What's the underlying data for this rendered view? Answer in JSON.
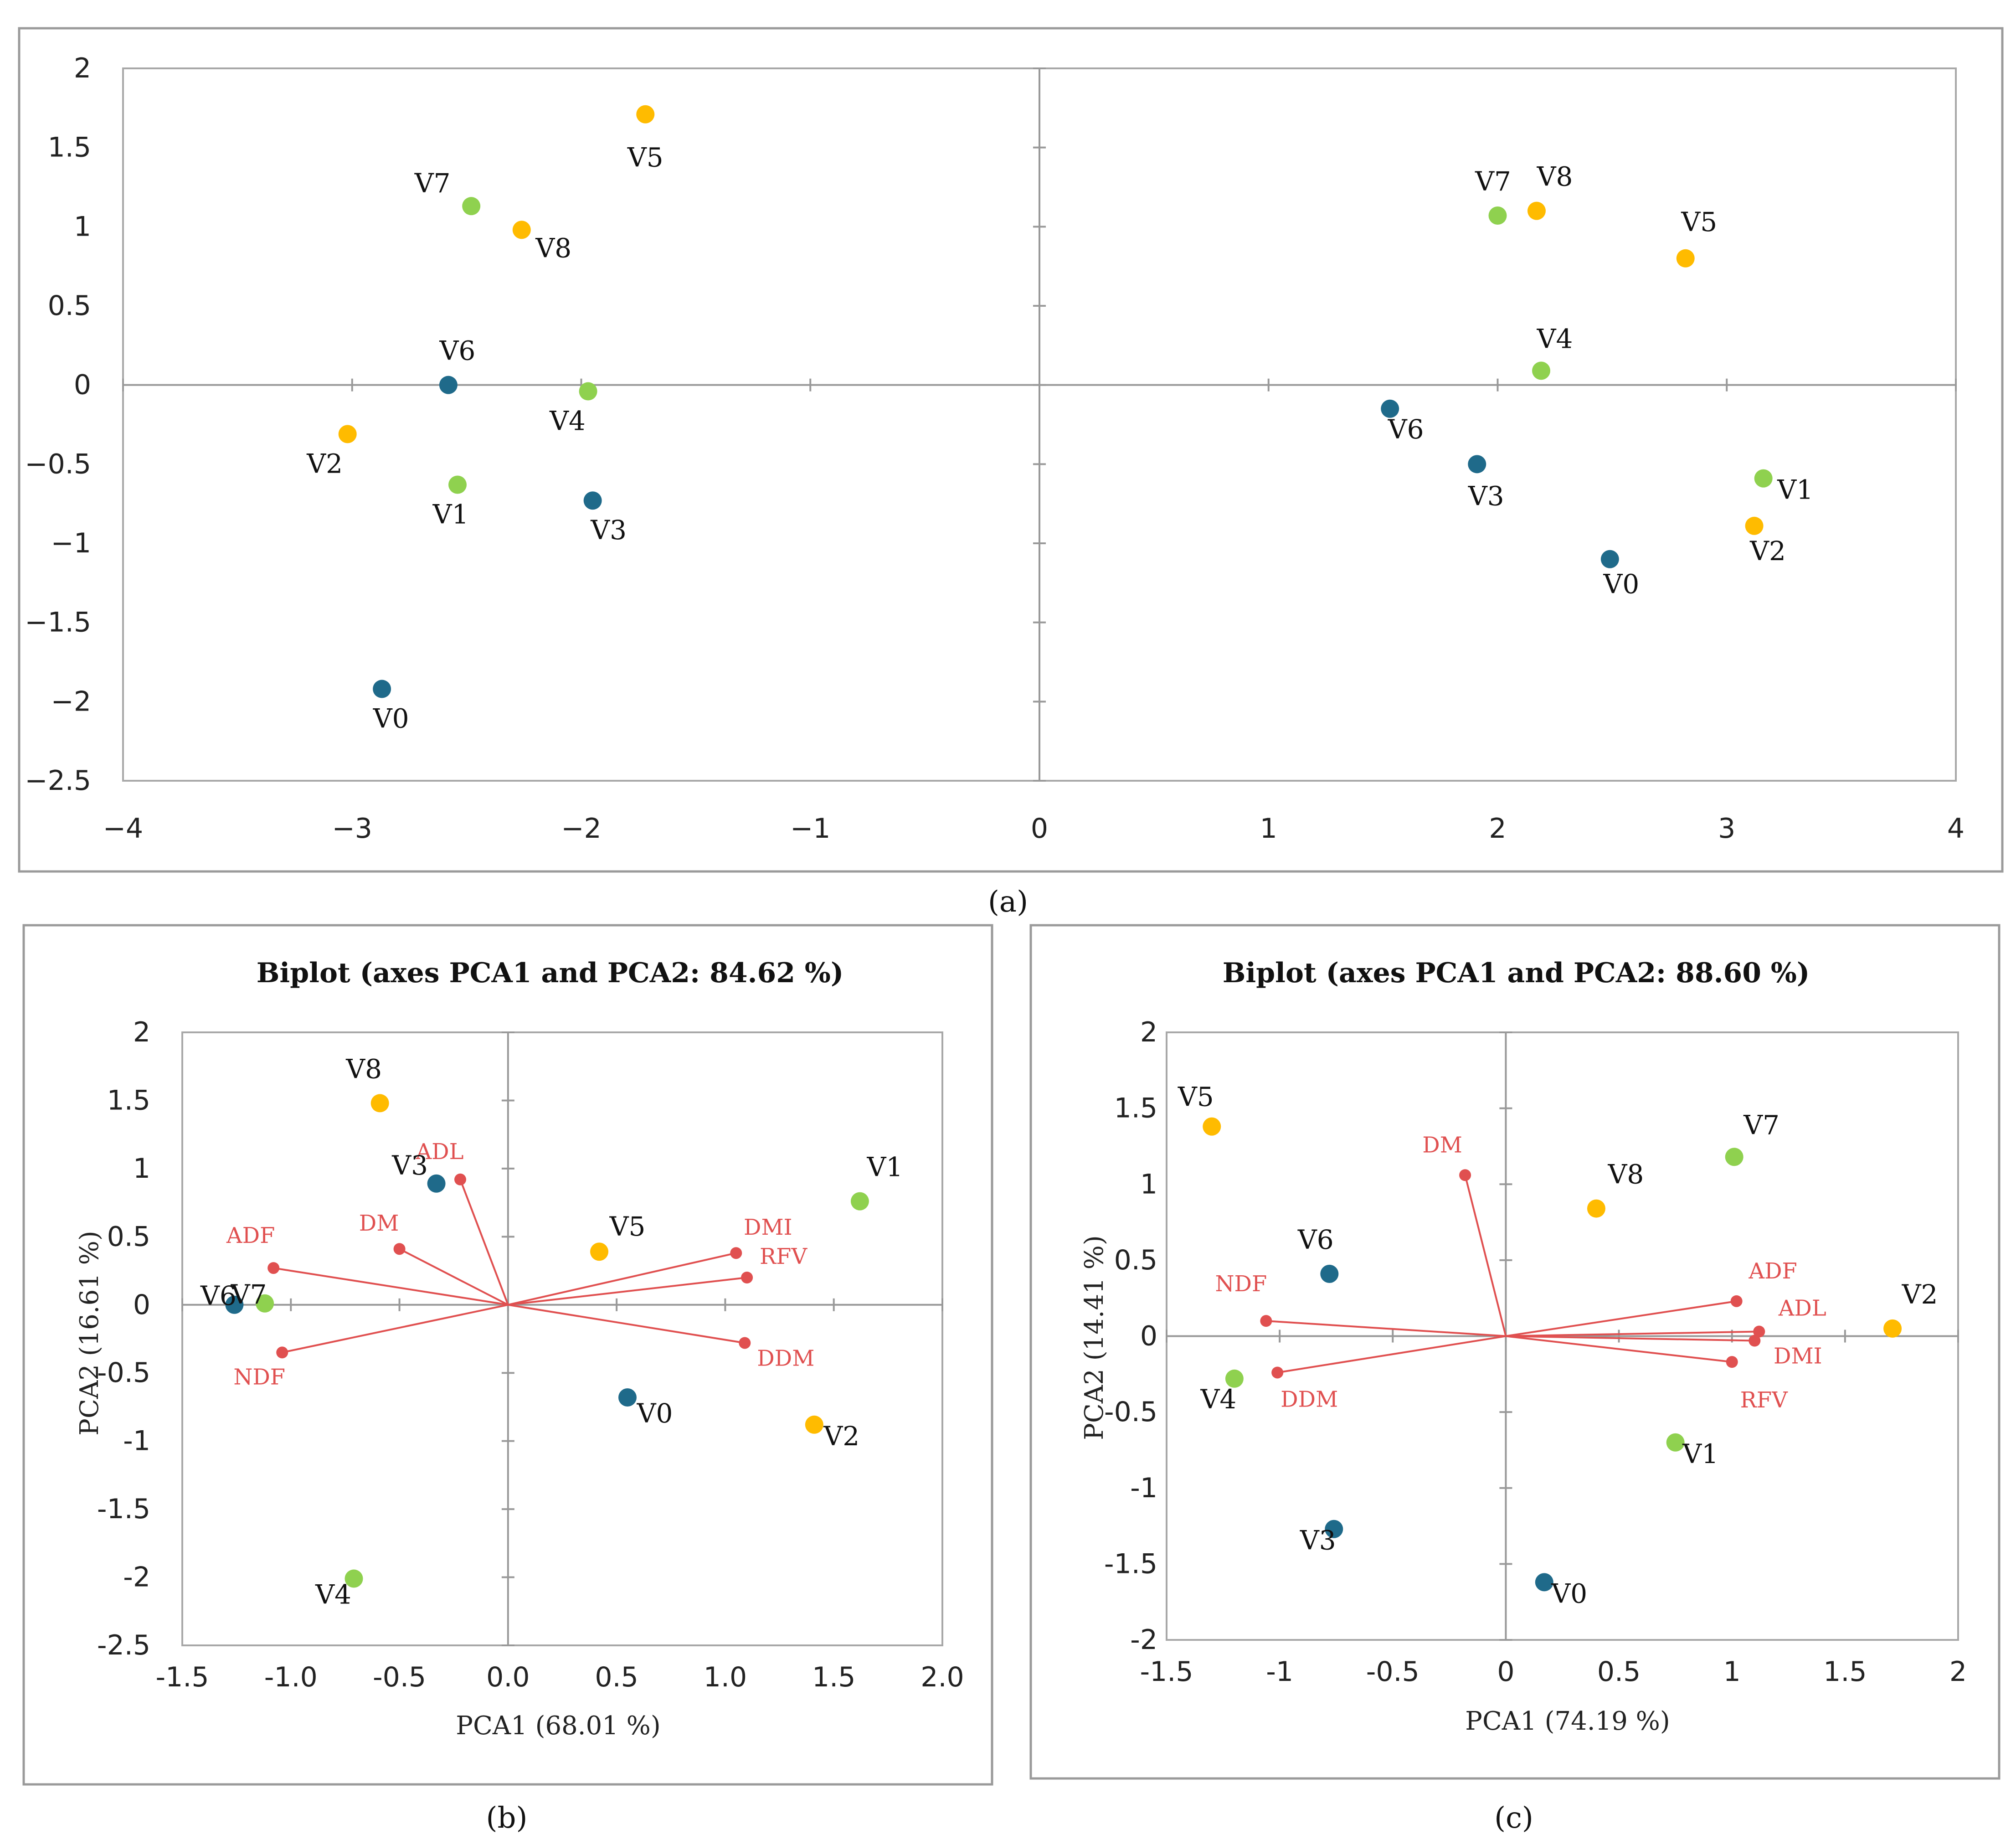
{
  "colors": {
    "blue": "#1f6a8a",
    "green": "#8fd14f",
    "orange": "#ffbb00",
    "red": "#e05050",
    "axis": "#999999",
    "frame": "#9a9a9a"
  },
  "panels": {
    "a": "(a)",
    "b": "(b)",
    "c": "(c)"
  },
  "chart_data": [
    {
      "id": "a",
      "type": "scatter",
      "title": "",
      "xlabel": "",
      "ylabel": "",
      "xlim": [
        -4,
        4
      ],
      "ylim": [
        -2.5,
        2
      ],
      "xticks": [
        -4,
        -3,
        -2,
        -1,
        0,
        1,
        2,
        3,
        4
      ],
      "xtick_labels": [
        "−4",
        "−3",
        "−2",
        "−1",
        "0",
        "1",
        "2",
        "3",
        "4"
      ],
      "yticks": [
        2,
        1.5,
        1,
        0.5,
        0,
        -0.5,
        -1,
        -1.5,
        -2,
        -2.5
      ],
      "ytick_labels": [
        "2",
        "1.5",
        "1",
        "0.5",
        "0",
        "−0.5",
        "−1",
        "−1.5",
        "−2",
        "−2.5"
      ],
      "points": [
        {
          "label": "V5",
          "x": -1.72,
          "y": 1.71,
          "color": "orange"
        },
        {
          "label": "V7",
          "x": -2.48,
          "y": 1.13,
          "color": "green"
        },
        {
          "label": "V8",
          "x": -2.26,
          "y": 0.98,
          "color": "orange"
        },
        {
          "label": "V6",
          "x": -2.58,
          "y": 0.0,
          "color": "blue"
        },
        {
          "label": "V4",
          "x": -1.97,
          "y": -0.04,
          "color": "green"
        },
        {
          "label": "V2",
          "x": -3.02,
          "y": -0.31,
          "color": "orange"
        },
        {
          "label": "V1",
          "x": -2.54,
          "y": -0.63,
          "color": "green"
        },
        {
          "label": "V3",
          "x": -1.95,
          "y": -0.73,
          "color": "blue"
        },
        {
          "label": "V0",
          "x": -2.87,
          "y": -1.92,
          "color": "blue"
        },
        {
          "label": "V7",
          "x": 2.0,
          "y": 1.07,
          "color": "green"
        },
        {
          "label": "V8",
          "x": 2.17,
          "y": 1.1,
          "color": "orange"
        },
        {
          "label": "V5",
          "x": 2.82,
          "y": 0.8,
          "color": "orange"
        },
        {
          "label": "V4",
          "x": 2.19,
          "y": 0.09,
          "color": "green"
        },
        {
          "label": "V6",
          "x": 1.53,
          "y": -0.15,
          "color": "blue"
        },
        {
          "label": "V3",
          "x": 1.91,
          "y": -0.5,
          "color": "blue"
        },
        {
          "label": "V1",
          "x": 3.16,
          "y": -0.59,
          "color": "green"
        },
        {
          "label": "V2",
          "x": 3.12,
          "y": -0.89,
          "color": "orange"
        },
        {
          "label": "V0",
          "x": 2.49,
          "y": -1.1,
          "color": "blue"
        }
      ]
    },
    {
      "id": "b",
      "type": "scatter",
      "title": "Biplot (axes PCA1 and PCA2: 84.62 %)",
      "xlabel": "PCA1 (68.01 %)",
      "ylabel": "PCA2 (16.61 %)",
      "xlim": [
        -1.5,
        2.0
      ],
      "ylim": [
        -2.5,
        2
      ],
      "xticks": [
        -1.5,
        -1.0,
        -0.5,
        0.0,
        0.5,
        1.0,
        1.5,
        2.0
      ],
      "xtick_labels": [
        "-1.5",
        "-1.0",
        "-0.5",
        "0.0",
        "0.5",
        "1.0",
        "1.5",
        "2.0"
      ],
      "yticks": [
        2,
        1.5,
        1,
        0.5,
        0,
        -0.5,
        -1,
        -1.5,
        -2,
        -2.5
      ],
      "ytick_labels": [
        "2",
        "1.5",
        "1",
        "0.5",
        "0",
        "-0.5",
        "-1",
        "-1.5",
        "-2",
        "-2.5"
      ],
      "points": [
        {
          "label": "V8",
          "x": -0.59,
          "y": 1.48,
          "color": "orange"
        },
        {
          "label": "V3",
          "x": -0.33,
          "y": 0.89,
          "color": "blue"
        },
        {
          "label": "V1",
          "x": 1.62,
          "y": 0.76,
          "color": "green"
        },
        {
          "label": "V5",
          "x": 0.42,
          "y": 0.39,
          "color": "orange"
        },
        {
          "label": "V6",
          "x": -1.26,
          "y": 0.0,
          "color": "blue"
        },
        {
          "label": "V7",
          "x": -1.12,
          "y": 0.01,
          "color": "green"
        },
        {
          "label": "V0",
          "x": 0.55,
          "y": -0.68,
          "color": "blue"
        },
        {
          "label": "V2",
          "x": 1.41,
          "y": -0.88,
          "color": "orange"
        },
        {
          "label": "V4",
          "x": -0.71,
          "y": -2.01,
          "color": "green"
        }
      ],
      "vectors": [
        {
          "label": "ADL",
          "x": -0.22,
          "y": 0.92
        },
        {
          "label": "DM",
          "x": -0.5,
          "y": 0.41
        },
        {
          "label": "ADF",
          "x": -1.08,
          "y": 0.27
        },
        {
          "label": "NDF",
          "x": -1.04,
          "y": -0.35
        },
        {
          "label": "DMI",
          "x": 1.05,
          "y": 0.38
        },
        {
          "label": "RFV",
          "x": 1.1,
          "y": 0.2
        },
        {
          "label": "DDM",
          "x": 1.09,
          "y": -0.28
        }
      ]
    },
    {
      "id": "c",
      "type": "scatter",
      "title": "Biplot (axes PCA1 and PCA2: 88.60 %)",
      "xlabel": "PCA1 (74.19 %)",
      "ylabel": "PCA2 (14.41 %)",
      "xlim": [
        -1.5,
        2
      ],
      "ylim": [
        -2,
        2
      ],
      "xticks": [
        -1.5,
        -1,
        -0.5,
        0,
        0.5,
        1,
        1.5,
        2
      ],
      "xtick_labels": [
        "-1.5",
        "-1",
        "-0.5",
        "0",
        "0.5",
        "1",
        "1.5",
        "2"
      ],
      "yticks": [
        2,
        1.5,
        1,
        0.5,
        0,
        -0.5,
        -1,
        -1.5,
        -2
      ],
      "ytick_labels": [
        "2",
        "1.5",
        "1",
        "0.5",
        "0",
        "-0.5",
        "-1",
        "-1.5",
        "-2"
      ],
      "points": [
        {
          "label": "V5",
          "x": -1.3,
          "y": 1.38,
          "color": "orange"
        },
        {
          "label": "V7",
          "x": 1.01,
          "y": 1.18,
          "color": "green"
        },
        {
          "label": "V8",
          "x": 0.4,
          "y": 0.84,
          "color": "orange"
        },
        {
          "label": "V6",
          "x": -0.78,
          "y": 0.41,
          "color": "blue"
        },
        {
          "label": "V2",
          "x": 1.71,
          "y": 0.05,
          "color": "orange"
        },
        {
          "label": "V4",
          "x": -1.2,
          "y": -0.28,
          "color": "green"
        },
        {
          "label": "V1",
          "x": 0.75,
          "y": -0.7,
          "color": "green"
        },
        {
          "label": "V3",
          "x": -0.76,
          "y": -1.27,
          "color": "blue"
        },
        {
          "label": "V0",
          "x": 0.17,
          "y": -1.62,
          "color": "blue"
        }
      ],
      "vectors": [
        {
          "label": "DM",
          "x": -0.18,
          "y": 1.06
        },
        {
          "label": "NDF",
          "x": -1.06,
          "y": 0.1
        },
        {
          "label": "DDM",
          "x": -1.01,
          "y": -0.24
        },
        {
          "label": "ADF",
          "x": 1.02,
          "y": 0.23
        },
        {
          "label": "ADL",
          "x": 1.12,
          "y": 0.03
        },
        {
          "label": "DMI",
          "x": 1.1,
          "y": -0.03
        },
        {
          "label": "RFV",
          "x": 1.0,
          "y": -0.17
        }
      ]
    }
  ]
}
